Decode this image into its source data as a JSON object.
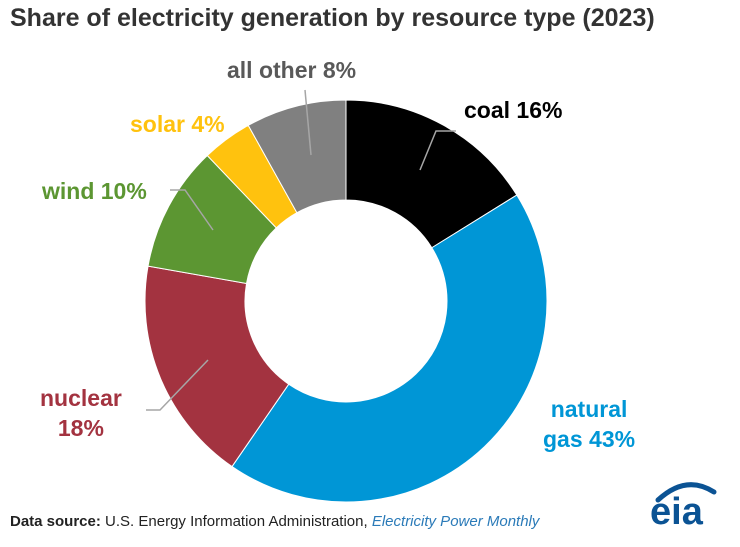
{
  "chart_data": {
    "type": "pie",
    "title": "Share of electricity generation by resource type (2023)",
    "units": "percent",
    "donut": true,
    "slices": [
      {
        "name": "coal",
        "value": 16,
        "color": "#000000",
        "label_lines": [
          "coal 16%"
        ],
        "label_color": "#000000"
      },
      {
        "name": "natural gas",
        "value": 43,
        "color": "#0096d6",
        "label_lines": [
          "natural",
          "gas 43%"
        ],
        "label_color": "#0096d6"
      },
      {
        "name": "nuclear",
        "value": 18,
        "color": "#a33340",
        "label_lines": [
          "nuclear",
          "18%"
        ],
        "label_color": "#a33340"
      },
      {
        "name": "wind",
        "value": 10,
        "color": "#5c9632",
        "label_lines": [
          "wind 10%"
        ],
        "label_color": "#5c9632"
      },
      {
        "name": "solar",
        "value": 4,
        "color": "#ffc20e",
        "label_lines": [
          "solar 4%"
        ],
        "label_color": "#ffc20e"
      },
      {
        "name": "all other",
        "value": 8,
        "color": "#808080",
        "label_lines": [
          "all other 8%"
        ],
        "label_color": "#595959"
      }
    ]
  },
  "footer": {
    "source_label": "Data source:",
    "source_org": "U.S. Energy Information Administration,",
    "source_pub": "Electricity Power Monthly"
  },
  "logo": {
    "text": "eia",
    "color": "#0b5394"
  }
}
